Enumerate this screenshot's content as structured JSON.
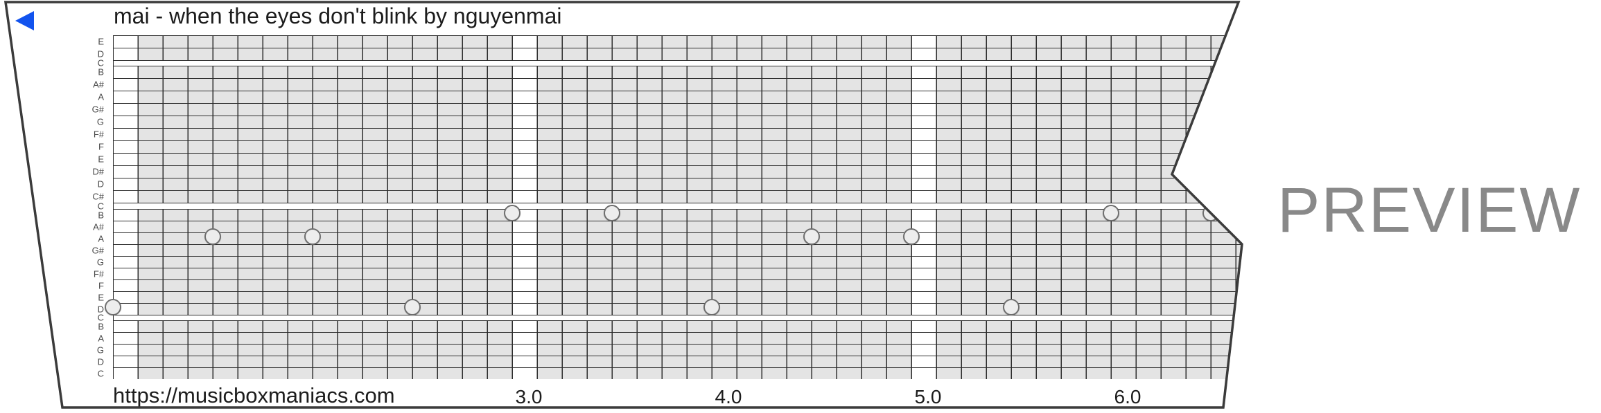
{
  "header": {
    "title": "mai - when the eyes don't blink by nguyenmai"
  },
  "watermark": "PREVIEW",
  "footer": {
    "url": "https://musicboxmaniacs.com",
    "beat_labels": [
      {
        "text": "3.0",
        "cell": 16
      },
      {
        "text": "4.0",
        "cell": 24
      },
      {
        "text": "5.0",
        "cell": 32
      },
      {
        "text": "6.0",
        "cell": 40
      }
    ]
  },
  "strip": {
    "pitch_rows": [
      {
        "label": "E",
        "h": 18,
        "white": false
      },
      {
        "label": "D",
        "h": 18,
        "white": false
      },
      {
        "label": "C",
        "h": 8,
        "white": true
      },
      {
        "label": "B",
        "h": 18,
        "white": false
      },
      {
        "label": "A#",
        "h": 18,
        "white": false
      },
      {
        "label": "A",
        "h": 18,
        "white": false
      },
      {
        "label": "G#",
        "h": 18,
        "white": false
      },
      {
        "label": "G",
        "h": 18,
        "white": false
      },
      {
        "label": "F#",
        "h": 18,
        "white": false
      },
      {
        "label": "F",
        "h": 18,
        "white": false
      },
      {
        "label": "E",
        "h": 18,
        "white": false
      },
      {
        "label": "D#",
        "h": 18,
        "white": false
      },
      {
        "label": "D",
        "h": 18,
        "white": false
      },
      {
        "label": "C#",
        "h": 18,
        "white": false
      },
      {
        "label": "C",
        "h": 9,
        "white": true
      },
      {
        "label": "B",
        "h": 17,
        "white": false
      },
      {
        "label": "A#",
        "h": 17,
        "white": false
      },
      {
        "label": "A",
        "h": 17,
        "white": false
      },
      {
        "label": "G#",
        "h": 17,
        "white": false
      },
      {
        "label": "G",
        "h": 17,
        "white": false
      },
      {
        "label": "F#",
        "h": 17,
        "white": false
      },
      {
        "label": "F",
        "h": 17,
        "white": false
      },
      {
        "label": "E",
        "h": 17,
        "white": false
      },
      {
        "label": "D",
        "h": 17,
        "white": false
      },
      {
        "label": "C",
        "h": 8,
        "white": true
      },
      {
        "label": "B",
        "h": 17,
        "white": false
      },
      {
        "label": "A",
        "h": 17,
        "white": false
      },
      {
        "label": "G",
        "h": 17,
        "white": false
      },
      {
        "label": "D",
        "h": 17,
        "white": false
      },
      {
        "label": "C",
        "h": 17,
        "white": false
      }
    ],
    "white_column_cells": [
      0,
      16,
      32
    ],
    "notes": [
      {
        "beat": 1.0,
        "pitch": "D",
        "cell": 0,
        "row_index": 23
      },
      {
        "beat": 1.5,
        "pitch": "A",
        "cell": 4,
        "row_index": 17
      },
      {
        "beat": 2.0,
        "pitch": "A",
        "cell": 8,
        "row_index": 17
      },
      {
        "beat": 2.5,
        "pitch": "D",
        "cell": 12,
        "row_index": 23
      },
      {
        "beat": 3.0,
        "pitch": "B",
        "cell": 16,
        "row_index": 15
      },
      {
        "beat": 3.5,
        "pitch": "B",
        "cell": 20,
        "row_index": 15
      },
      {
        "beat": 4.0,
        "pitch": "D",
        "cell": 24,
        "row_index": 23
      },
      {
        "beat": 4.5,
        "pitch": "A",
        "cell": 28,
        "row_index": 17
      },
      {
        "beat": 5.0,
        "pitch": "A",
        "cell": 32,
        "row_index": 17
      },
      {
        "beat": 5.5,
        "pitch": "D",
        "cell": 36,
        "row_index": 23
      },
      {
        "beat": 6.0,
        "pitch": "B",
        "cell": 40,
        "row_index": 15
      },
      {
        "beat": 6.5,
        "pitch": "B",
        "cell": 44,
        "row_index": 15
      }
    ]
  },
  "colors": {
    "grid_line": "#2d2d2d",
    "cell_gray": "#e4e4e4",
    "paper_outline": "#3b3b3b",
    "note_fill": "#ededed",
    "note_border": "#6e6e6e",
    "play_blue": "#1253ee",
    "watermark_gray": "#898989",
    "text_dark": "#1c1c1c"
  }
}
